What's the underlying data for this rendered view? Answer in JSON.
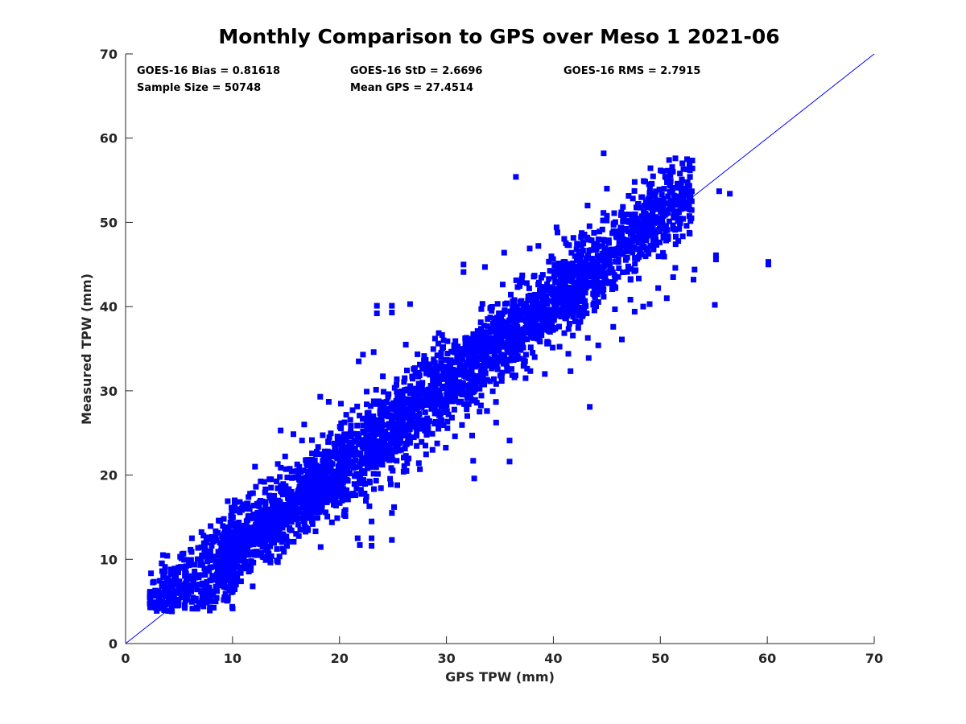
{
  "chart_data": {
    "type": "scatter",
    "title": "Monthly Comparison to GPS over Meso 1 2021-06",
    "xlabel": "GPS TPW (mm)",
    "ylabel": "Measured TPW (mm)",
    "xlim": [
      0,
      70
    ],
    "ylim": [
      0,
      70
    ],
    "xticks": [
      "0",
      "10",
      "20",
      "30",
      "40",
      "50",
      "60",
      "70"
    ],
    "yticks": [
      "0",
      "10",
      "20",
      "30",
      "40",
      "50",
      "60",
      "70"
    ],
    "grid": false,
    "marker_color": "#0000ff",
    "line_color": "#0000ff",
    "reference_line": {
      "x": [
        0,
        70
      ],
      "y": [
        0,
        70
      ]
    },
    "stats": {
      "bias": "GOES-16 Bias = 0.81618",
      "std": "GOES-16 StD = 2.6696",
      "rms": "GOES-16 RMS = 2.7915",
      "sample_size": "Sample Size = 50748",
      "mean_gps": "Mean GPS = 27.4514"
    },
    "sample_size": 50748,
    "bias": 0.81618,
    "std": 2.6696,
    "rms": 2.7915,
    "mean_gps": 27.4514,
    "outlier_points": [
      [
        44.7,
        58.2
      ],
      [
        36.5,
        55.4
      ],
      [
        52.5,
        57.5
      ],
      [
        53.0,
        56.4
      ],
      [
        55.5,
        53.7
      ],
      [
        56.5,
        53.4
      ],
      [
        60.1,
        45.0
      ],
      [
        60.1,
        45.3
      ],
      [
        55.2,
        46.1
      ],
      [
        55.2,
        45.6
      ],
      [
        55.1,
        40.2
      ],
      [
        53.1,
        43.2
      ],
      [
        53.2,
        44.4
      ],
      [
        51.2,
        43.5
      ],
      [
        50.6,
        41.0
      ],
      [
        49.0,
        40.3
      ],
      [
        48.4,
        40.0
      ],
      [
        43.4,
        28.1
      ],
      [
        35.9,
        24.1
      ],
      [
        35.9,
        21.6
      ],
      [
        32.6,
        19.6
      ],
      [
        32.5,
        21.7
      ],
      [
        32.4,
        24.7
      ],
      [
        25.4,
        18.8
      ],
      [
        24.8,
        18.9
      ],
      [
        25.1,
        16.2
      ],
      [
        24.9,
        15.5
      ],
      [
        24.9,
        12.3
      ],
      [
        21.9,
        11.7
      ],
      [
        21.7,
        12.5
      ],
      [
        23.0,
        11.6
      ],
      [
        23.0,
        12.5
      ],
      [
        23.0,
        14.5
      ],
      [
        20.8,
        17.1
      ],
      [
        23.5,
        40.1
      ],
      [
        23.5,
        39.2
      ],
      [
        24.9,
        40.1
      ],
      [
        24.9,
        39.3
      ],
      [
        22.2,
        34.3
      ],
      [
        23.2,
        34.6
      ],
      [
        21.8,
        33.5
      ],
      [
        18.2,
        29.3
      ],
      [
        19.0,
        28.7
      ],
      [
        16.5,
        24.1
      ],
      [
        16.7,
        26.0
      ],
      [
        26.6,
        40.3
      ],
      [
        31.6,
        44.1
      ],
      [
        31.6,
        45.0
      ],
      [
        33.6,
        44.7
      ],
      [
        35.4,
        46.4
      ],
      [
        38.6,
        47.2
      ],
      [
        40.3,
        49.4
      ],
      [
        43.2,
        52.0
      ],
      [
        45.0,
        54.0
      ],
      [
        47.6,
        54.8
      ],
      [
        48.3,
        53.0
      ],
      [
        50.0,
        52.2
      ],
      [
        51.4,
        53.1
      ],
      [
        10.2,
        16.5
      ],
      [
        10.2,
        17.0
      ],
      [
        12.1,
        21.0
      ],
      [
        14.5,
        25.3
      ],
      [
        3.4,
        9.5
      ],
      [
        2.3,
        4.4
      ],
      [
        2.3,
        5.0
      ],
      [
        3.5,
        10.5
      ],
      [
        6.2,
        12.5
      ],
      [
        8.7,
        14.6
      ],
      [
        11.6,
        16.0
      ],
      [
        13.6,
        19.5
      ],
      [
        18.3,
        18.2
      ],
      [
        19.8,
        19.0
      ],
      [
        21.1,
        17.6
      ],
      [
        22.8,
        16.3
      ],
      [
        26.0,
        20.4
      ],
      [
        28.7,
        23.0
      ],
      [
        30.8,
        24.6
      ],
      [
        33.8,
        27.6
      ],
      [
        37.4,
        31.5
      ],
      [
        39.2,
        32.0
      ],
      [
        41.4,
        34.4
      ],
      [
        44.2,
        35.4
      ],
      [
        45.6,
        37.6
      ],
      [
        47.6,
        39.4
      ],
      [
        49.8,
        42.2
      ],
      [
        51.4,
        44.6
      ],
      [
        46.4,
        36.1
      ],
      [
        43.3,
        33.9
      ]
    ]
  }
}
